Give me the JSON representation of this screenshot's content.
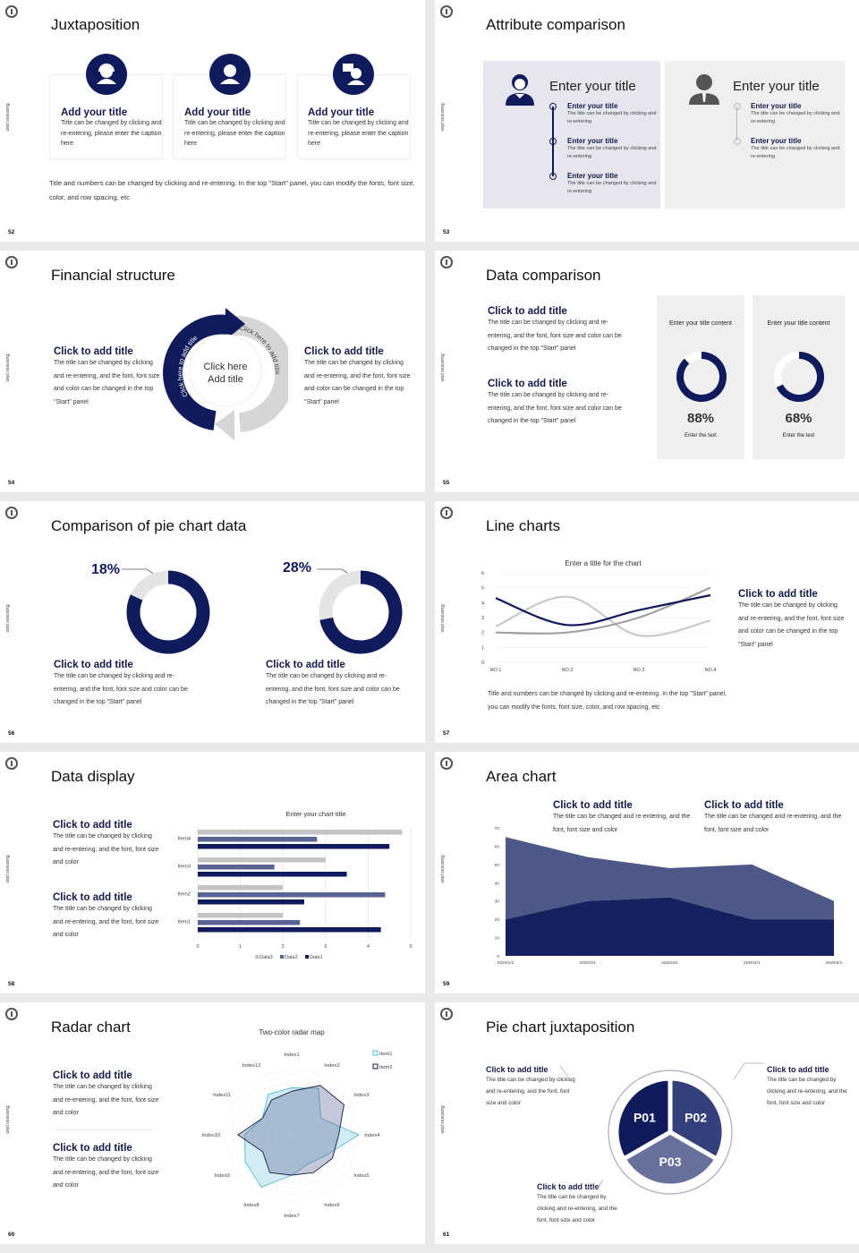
{
  "common": {
    "side_label": "Business plan",
    "colors": {
      "navy": "#0f1b5c",
      "mid": "#5a6494",
      "gray": "#c9c9c9",
      "light": "#e4e4e4",
      "cyan": "#4fb8d6"
    }
  },
  "s52": {
    "number": "52",
    "title": "Juxtaposition",
    "cards": [
      {
        "icon": "headset-agent-icon",
        "title": "Add your title",
        "text": "Title can be changed by clicking and re-entering, please enter the caption here"
      },
      {
        "icon": "person-icon",
        "title": "Add your title",
        "text": "Title can be changed by clicking and re-entering, please enter the caption here"
      },
      {
        "icon": "person-speech-icon",
        "title": "Add your title",
        "text": "Title can be changed by clicking and re-entering, please enter the caption here"
      }
    ],
    "footer": "Title and numbers can be changed by clicking and re-entering. In the top \"Start\" panel, you can modify the fonts, font size, color, and row spacing, etc"
  },
  "s53": {
    "number": "53",
    "title": "Attribute comparison",
    "left": {
      "heading": "Enter your title",
      "items": [
        {
          "title": "Enter your title",
          "text": "The title can be changed by clicking and re-entering"
        },
        {
          "title": "Enter your title",
          "text": "The title can be changed by clicking and re-entering"
        },
        {
          "title": "Enter your title",
          "text": "The title can be changed by clicking and re-entering"
        }
      ]
    },
    "right": {
      "heading": "Enter your title",
      "items": [
        {
          "title": "Enter your title",
          "text": "The title can be changed by clicking and re-entering"
        },
        {
          "title": "Enter your title",
          "text": "The title can be changed by clicking and re-entering"
        }
      ]
    }
  },
  "s54": {
    "number": "54",
    "title": "Financial structure",
    "left": {
      "title": "Click to add title",
      "text": "The title can be changed by clicking and re-entering, and the font, font size and color can be changed in the top \"Start\" panel"
    },
    "right": {
      "title": "Click to add title",
      "text": "The title can be changed by clicking and re-entering, and the font, font size and color can be changed in the top \"Start\" panel"
    },
    "center_line1": "Click here",
    "center_line2": "Add title",
    "arc_navy": "Click here to add title",
    "arc_gray": "Click here to add title"
  },
  "s55": {
    "number": "55",
    "title": "Data comparison",
    "blocks": [
      {
        "title": "Click to add title",
        "text": "The title can be changed by clicking and re-entering, and the font, font size and color can be changed in the top \"Start\" panel"
      },
      {
        "title": "Click to add title",
        "text": "The title can be changed by clicking and re-entering, and the font, font size and color can be changed in the top \"Start\" panel"
      }
    ],
    "panels": [
      {
        "heading": "Enter your title content",
        "percent": 88,
        "label": "88%",
        "caption": "Enter the text"
      },
      {
        "heading": "Enter your title content",
        "percent": 68,
        "label": "68%",
        "caption": "Enter the text"
      }
    ]
  },
  "s56": {
    "number": "56",
    "title": "Comparison of pie chart data",
    "pies": [
      {
        "percent": 18,
        "label": "18%",
        "title": "Click to add title",
        "text": "The title can be changed by clicking and re-entering, and the font, font size and color can be changed in the top \"Start\" panel"
      },
      {
        "percent": 28,
        "label": "28%",
        "title": "Click to add title",
        "text": "The title can be changed by clicking and re-entering, and the font, font size and color can be changed in the top \"Start\" panel"
      }
    ]
  },
  "s57": {
    "number": "57",
    "title": "Line charts",
    "side_title": "Click to add title",
    "side_text": "The title can be changed by clicking and re-entering, and the font, font size and color can be changed in the top \"Start\" panel",
    "footer": "Title and numbers can be changed by clicking and re-entering. In the top \"Start\" panel, you can modify the fonts, font size, color, and row spacing, etc"
  },
  "s58": {
    "number": "58",
    "title": "Data display",
    "blocks": [
      {
        "title": "Click to add title",
        "text": "The title can be changed by clicking and re-entering, and the font, font size and color"
      },
      {
        "title": "Click to add title",
        "text": "The title can be changed by clicking and re-entering, and the font, font size and color"
      }
    ]
  },
  "s59": {
    "number": "59",
    "title": "Area chart",
    "blocks": [
      {
        "title": "Click to add title",
        "text": "The title can be changed and re-entering, and the font, font size and color"
      },
      {
        "title": "Click to add title",
        "text": "The title can be changed and re-entering, and the font, font size and color"
      }
    ]
  },
  "s60": {
    "number": "60",
    "title": "Radar chart",
    "blocks": [
      {
        "title": "Click to add title",
        "text": "The title can be changed by clicking and re-entering, and the font, font size and color"
      },
      {
        "title": "Click to add title",
        "text": "The title can be changed by clicking and re-entering, and the font, font size and color"
      }
    ]
  },
  "s61": {
    "number": "61",
    "title": "Pie chart juxtaposition",
    "segments": [
      "P01",
      "P02",
      "P03"
    ],
    "blocks": [
      {
        "title": "Click to add title",
        "text": "The title can be changed by clicking and re-entering, and the font, font size and color"
      },
      {
        "title": "Click to add title",
        "text": "The title can be changed by clicking and re-entering, and the font, font size and color"
      },
      {
        "title": "Click to add title",
        "text": "The title can be changed by clicking and re-entering, and the font, font size and color"
      }
    ]
  },
  "chart_data": [
    {
      "id": "line",
      "type": "line",
      "title": "Enter a title for the chart",
      "categories": [
        "NO.1",
        "NO.2",
        "NO.3",
        "NO.4"
      ],
      "ylim": [
        0,
        6
      ],
      "yticks": [
        0,
        1,
        2,
        3,
        4,
        5,
        6
      ],
      "grid": true,
      "smooth": true,
      "series": [
        {
          "color": "#c9c9c9",
          "values": [
            2.4,
            4.4,
            1.8,
            2.8
          ]
        },
        {
          "color": "#a0a0a0",
          "values": [
            2.0,
            2.0,
            3.0,
            5.0
          ]
        },
        {
          "color": "#0f1b5c",
          "values": [
            4.3,
            2.5,
            3.5,
            4.5
          ]
        }
      ]
    },
    {
      "id": "bar",
      "type": "bar",
      "orientation": "horizontal",
      "title": "Enter your chart title",
      "categories": [
        "Item1",
        "Item2",
        "Item3",
        "Item4"
      ],
      "xlim": [
        0,
        5
      ],
      "xticks": [
        0,
        1,
        2,
        3,
        4,
        5
      ],
      "grid": true,
      "legend": "bottom",
      "series": [
        {
          "name": "Data3",
          "color": "#c4c4c4",
          "values": [
            2.0,
            2.0,
            3.0,
            4.8
          ]
        },
        {
          "name": "Data2",
          "color": "#5a6494",
          "values": [
            2.4,
            4.4,
            1.8,
            2.8
          ]
        },
        {
          "name": "Data1",
          "color": "#0f1b5c",
          "values": [
            4.3,
            2.5,
            3.5,
            4.5
          ]
        }
      ]
    },
    {
      "id": "area",
      "type": "area",
      "stacked": true,
      "categories": [
        "2020/1/1",
        "2020/2/1",
        "2020/3/1",
        "2020/4/1",
        "2020/5/1"
      ],
      "ylim": [
        0,
        70
      ],
      "yticks": [
        0,
        10,
        20,
        30,
        40,
        50,
        60,
        70
      ],
      "series": [
        {
          "color": "#14215e",
          "values": [
            20,
            30,
            32,
            20,
            20
          ]
        },
        {
          "color": "#4d5886",
          "values": [
            45,
            24,
            16,
            30,
            10
          ]
        }
      ]
    },
    {
      "id": "radar",
      "type": "radar",
      "title": "Two-color radar map",
      "categories": [
        "Index1",
        "Index2",
        "Index3",
        "Index4",
        "Index5",
        "Index6",
        "Index7",
        "Index8",
        "Index9",
        "Index10",
        "Index11",
        "Index12"
      ],
      "rmax": 10,
      "legend": "top-right",
      "series": [
        {
          "name": "Item1",
          "color": "#4fb8d6",
          "values": [
            7,
            8,
            5,
            10,
            6,
            5,
            6,
            9,
            8,
            7,
            5,
            7
          ]
        },
        {
          "name": "Item2",
          "color": "#1a1f45",
          "values": [
            6.5,
            8.5,
            9,
            7,
            7,
            6.5,
            6,
            6.5,
            5,
            8,
            5,
            6
          ]
        }
      ]
    }
  ]
}
